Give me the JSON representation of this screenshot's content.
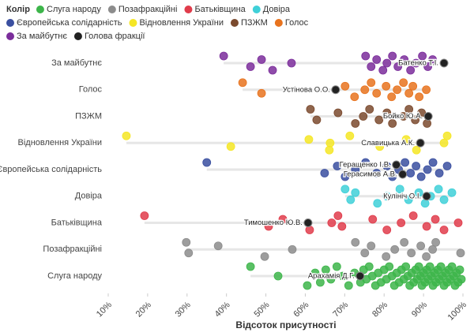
{
  "chart_data": {
    "type": "strip",
    "legend_title": "Колір",
    "x_label": "Відсоток присутності",
    "xlim": [
      10,
      100
    ],
    "xticks": [
      {
        "value": 10,
        "label": "10%"
      },
      {
        "value": 20,
        "label": "20%"
      },
      {
        "value": 30,
        "label": "30%"
      },
      {
        "value": 40,
        "label": "40%"
      },
      {
        "value": 50,
        "label": "50%"
      },
      {
        "value": 60,
        "label": "60%"
      },
      {
        "value": 70,
        "label": "70%"
      },
      {
        "value": 80,
        "label": "80%"
      },
      {
        "value": 90,
        "label": "90%"
      },
      {
        "value": 100,
        "label": "100%"
      }
    ],
    "head_legend": {
      "name": "Голова фракції",
      "color": "#222222"
    },
    "series": [
      {
        "name": "Слуга народу",
        "color": "#3db54a",
        "values": [
          46.1,
          53.1,
          60.5,
          62.5,
          63.8,
          65.2,
          66.5,
          68,
          69.5,
          71,
          72.5,
          74,
          74.8,
          75.5,
          76.2,
          77,
          77.8,
          78.5,
          79.2,
          80,
          80.6,
          81.3,
          82,
          82.6,
          83.2,
          83.8,
          84.4,
          85,
          85.5,
          86,
          86.5,
          87,
          87.5,
          88,
          88.4,
          88.8,
          89.2,
          89.6,
          90,
          90.4,
          90.8,
          91.2,
          91.6,
          92,
          92.4,
          92.8,
          93.2,
          93.6,
          94,
          94.4,
          94.8,
          95.2,
          95.6,
          96,
          96.4,
          96.8,
          97.2,
          97.6,
          98,
          98.4,
          98.8,
          99.2,
          99.6
        ],
        "heads": [
          {
            "name": "Арахамія Д.Г.",
            "value": 73.9
          }
        ]
      },
      {
        "name": "Позафракційні",
        "color": "#8c8c8c",
        "values": [
          29.8,
          30.4,
          37.9,
          49.7,
          56.7,
          72.7,
          75.1,
          76.7,
          80.5,
          82.7,
          85.1,
          86.9,
          89.3,
          90.7,
          92.3,
          93.1,
          99.4
        ],
        "heads": []
      },
      {
        "name": "Батьківщина",
        "color": "#e03c4b",
        "values": [
          19.2,
          50.7,
          54.3,
          61.1,
          66.7,
          68.3,
          69.3,
          77.1,
          80.7,
          84.3,
          87.4,
          90.8,
          93.0,
          95.2,
          98.8
        ],
        "heads": [
          {
            "name": "Тимошенко Ю.В.",
            "value": 60.7
          }
        ]
      },
      {
        "name": "Довіра",
        "color": "#3fd0d8",
        "values": [
          70.1,
          71.5,
          72.7,
          78.3,
          80.7,
          84.0,
          86.2,
          88.8,
          90.4,
          91.8,
          93.8,
          95.2,
          97.2
        ],
        "heads": [
          {
            "name": "Кулініч О.І.",
            "value": 90.8
          }
        ]
      },
      {
        "name": "Європейська солідарність",
        "color": "#3a4fa0",
        "values": [
          35.0,
          64.9,
          68.1,
          70.1,
          72.7,
          75.3,
          78.1,
          80.7,
          82.1,
          83.7,
          85.3,
          86.7,
          88.1,
          89.4,
          91.0,
          92.4,
          94.0,
          96.0
        ],
        "heads": [
          {
            "name": "Геращенко І.В.",
            "value": 83.1
          },
          {
            "name": "Герасимов А.В.",
            "value": 84.7
          }
        ]
      },
      {
        "name": "Відновлення України",
        "color": "#f5e625",
        "values": [
          14.6,
          41.1,
          60.9,
          66.1,
          66.3,
          71.3,
          78.9,
          85.6,
          88.2,
          95.2,
          96.0
        ],
        "heads": [
          {
            "name": "Славицька А.К.",
            "value": 89.2
          }
        ]
      },
      {
        "name": "ПЗЖМ",
        "color": "#7b4a2e",
        "values": [
          61.3,
          62.9,
          68.3,
          72.7,
          74.7,
          76.3,
          78.7,
          80.7,
          82.1,
          84.9,
          86.3,
          87.9,
          89.5,
          90.9
        ],
        "heads": [
          {
            "name": "Бойко Ю.А.",
            "value": 91.2
          }
        ]
      },
      {
        "name": "Голос",
        "color": "#e8731e",
        "values": [
          44.1,
          48.9,
          70.1,
          72.5,
          75.1,
          76.7,
          78.1,
          80.5,
          81.9,
          83.3,
          84.9,
          86.3,
          87.3,
          88.9,
          90.7
        ],
        "heads": [
          {
            "name": "Устінова О.О.",
            "value": 67.7
          }
        ]
      },
      {
        "name": "За майбутнє",
        "color": "#7b2d9b",
        "values": [
          39.3,
          46.1,
          48.9,
          51.7,
          56.5,
          75.3,
          76.7,
          78.1,
          79.7,
          80.7,
          82.1,
          83.5,
          85.1,
          86.7,
          88.1,
          89.7,
          91.1,
          92.3
        ],
        "heads": [
          {
            "name": "Батенко Т.І.",
            "value": 95.2
          }
        ]
      }
    ]
  }
}
